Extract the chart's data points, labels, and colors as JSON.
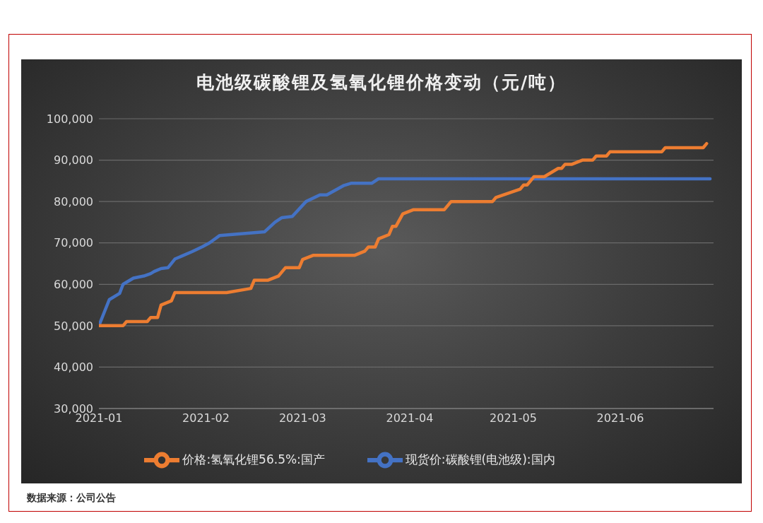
{
  "chart_data": {
    "type": "line",
    "title": "电池级碳酸锂及氢氧化锂价格变动（元/吨）",
    "xlim": [
      "2021-01-01",
      "2021-06-28"
    ],
    "xticks": [
      "2021-01",
      "2021-02",
      "2021-03",
      "2021-04",
      "2021-05",
      "2021-06"
    ],
    "ylim": [
      30000,
      100000
    ],
    "yticks": [
      {
        "value": 30000,
        "label": "30,000"
      },
      {
        "value": 40000,
        "label": "40,000"
      },
      {
        "value": 50000,
        "label": "50,000"
      },
      {
        "value": 60000,
        "label": "60,000"
      },
      {
        "value": 70000,
        "label": "70,000"
      },
      {
        "value": 80000,
        "label": "80,000"
      },
      {
        "value": 90000,
        "label": "90,000"
      },
      {
        "value": 100000,
        "label": "100,000"
      }
    ],
    "grid": "y",
    "legend": "bottom",
    "line_style": "solid",
    "annotations": [
      "数据来源：公司公告"
    ],
    "series": [
      {
        "name": "现货价:碳酸锂(电池级):国内",
        "color": "#4472c4",
        "x": [
          "2021-01-01",
          "2021-01-04",
          "2021-01-07",
          "2021-01-08",
          "2021-01-11",
          "2021-01-14",
          "2021-01-16",
          "2021-01-17",
          "2021-01-19",
          "2021-01-21",
          "2021-01-23",
          "2021-01-28",
          "2021-01-31",
          "2021-02-02",
          "2021-02-05",
          "2021-02-18",
          "2021-02-21",
          "2021-02-23",
          "2021-02-26",
          "2021-03-02",
          "2021-03-06",
          "2021-03-08",
          "2021-03-13",
          "2021-03-15",
          "2021-03-21",
          "2021-03-23",
          "2021-06-27"
        ],
        "values": [
          50000,
          56300,
          57800,
          60000,
          61500,
          62000,
          62600,
          63100,
          63800,
          64000,
          66100,
          67900,
          69100,
          70000,
          71800,
          72700,
          75000,
          76100,
          76400,
          80000,
          81600,
          81600,
          83900,
          84400,
          84400,
          85500,
          85500
        ]
      },
      {
        "name": "价格:氢氧化锂56.5%:国产",
        "color": "#ed7d31",
        "x": [
          "2021-01-01",
          "2021-01-08",
          "2021-01-09",
          "2021-01-15",
          "2021-01-16",
          "2021-01-18",
          "2021-01-19",
          "2021-01-22",
          "2021-01-23",
          "2021-02-07",
          "2021-02-14",
          "2021-02-15",
          "2021-02-19",
          "2021-02-22",
          "2021-02-24",
          "2021-02-28",
          "2021-03-01",
          "2021-03-04",
          "2021-03-16",
          "2021-03-19",
          "2021-03-20",
          "2021-03-22",
          "2021-03-23",
          "2021-03-26",
          "2021-03-27",
          "2021-03-28",
          "2021-03-30",
          "2021-04-02",
          "2021-04-11",
          "2021-04-13",
          "2021-04-25",
          "2021-04-26",
          "2021-05-03",
          "2021-05-04",
          "2021-05-05",
          "2021-05-07",
          "2021-05-10",
          "2021-05-14",
          "2021-05-15",
          "2021-05-16",
          "2021-05-18",
          "2021-05-21",
          "2021-05-24",
          "2021-05-25",
          "2021-05-28",
          "2021-05-29",
          "2021-06-13",
          "2021-06-14",
          "2021-06-25",
          "2021-06-26"
        ],
        "values": [
          50000,
          50000,
          51000,
          51000,
          52000,
          52000,
          55000,
          56000,
          58000,
          58000,
          59000,
          61000,
          61000,
          62000,
          64000,
          64000,
          66000,
          67000,
          67000,
          68000,
          69000,
          69000,
          71000,
          72000,
          74000,
          74000,
          77000,
          78000,
          78000,
          80000,
          80000,
          81000,
          83000,
          84000,
          84000,
          86000,
          86000,
          88000,
          88000,
          89000,
          89000,
          90000,
          90000,
          91000,
          91000,
          92000,
          92000,
          93000,
          93000,
          94000
        ]
      }
    ]
  }
}
